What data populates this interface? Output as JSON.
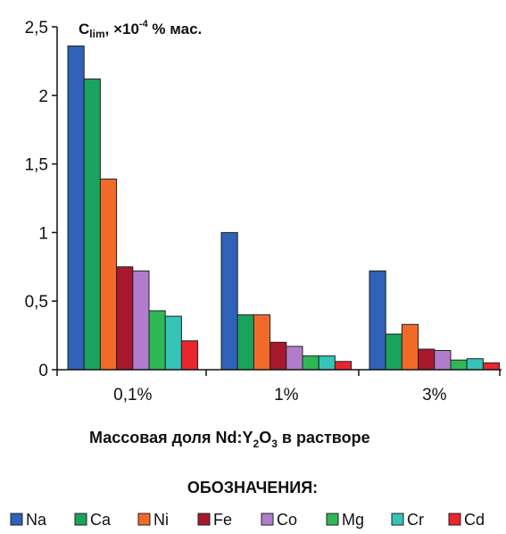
{
  "chart_data": {
    "type": "bar",
    "unit_label": {
      "base": "C",
      "sub": "lim",
      "rest1": ", ×10",
      "sup": "-4",
      "rest2": " % мас."
    },
    "xlabel": {
      "pre": "Массовая доля Nd:Y",
      "sub1": "2",
      "mid": "O",
      "sub2": "3",
      "post": " в растворе"
    },
    "legend_title": "ОБОЗНАЧЕНИЯ:",
    "categories": [
      "0,1%",
      "1%",
      "3%"
    ],
    "ylim": [
      0,
      2.5
    ],
    "yticks": [
      0,
      0.5,
      1,
      1.5,
      2,
      2.5
    ],
    "ytick_labels": [
      "0",
      "0,5",
      "1",
      "1,5",
      "2",
      "2,5"
    ],
    "grid": false,
    "legend_position": "bottom",
    "series": [
      {
        "name": "Na",
        "color": "#2f62b8",
        "values": [
          2.36,
          1.0,
          0.72
        ]
      },
      {
        "name": "Ca",
        "color": "#1aa35d",
        "values": [
          2.12,
          0.4,
          0.26
        ]
      },
      {
        "name": "Ni",
        "color": "#f26a2a",
        "values": [
          1.39,
          0.4,
          0.33
        ]
      },
      {
        "name": "Fe",
        "color": "#a8182c",
        "values": [
          0.75,
          0.2,
          0.15
        ]
      },
      {
        "name": "Co",
        "color": "#b27ccc",
        "values": [
          0.72,
          0.17,
          0.14
        ]
      },
      {
        "name": "Mg",
        "color": "#2db855",
        "values": [
          0.43,
          0.1,
          0.07
        ]
      },
      {
        "name": "Cr",
        "color": "#35c4b7",
        "values": [
          0.39,
          0.1,
          0.08
        ]
      },
      {
        "name": "Cd",
        "color": "#e8262c",
        "values": [
          0.21,
          0.06,
          0.05
        ]
      }
    ]
  }
}
